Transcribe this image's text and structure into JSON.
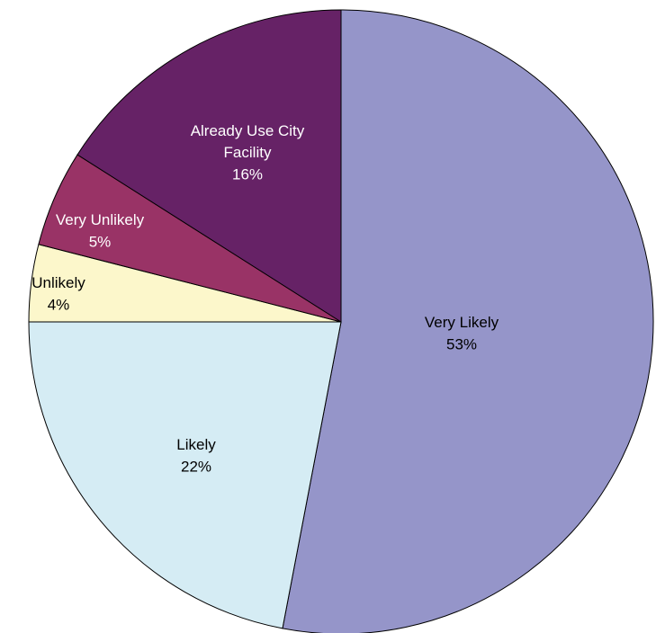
{
  "chart_data": {
    "type": "pie",
    "categories": [
      "Very Likely",
      "Likely",
      "Unlikely",
      "Very Unlikely",
      "Already Use City Facility"
    ],
    "values": [
      53,
      22,
      4,
      5,
      16
    ],
    "value_labels": [
      "53%",
      "22%",
      "4%",
      "5%",
      "16%"
    ],
    "colors": [
      "#9595c9",
      "#d5ecf4",
      "#fcf7cb",
      "#993366",
      "#662266"
    ],
    "label_colors": [
      "#000000",
      "#000000",
      "#000000",
      "#ffffff",
      "#ffffff"
    ]
  }
}
